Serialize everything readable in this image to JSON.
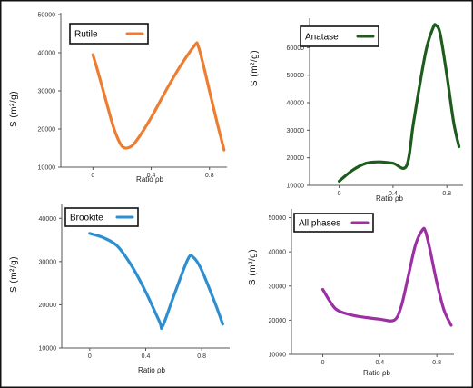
{
  "chart_data": [
    {
      "type": "line",
      "series": [
        {
          "name": "Rutile",
          "color": "#ed7d31",
          "x": [
            0.0,
            0.05,
            0.1,
            0.15,
            0.2,
            0.25,
            0.3,
            0.4,
            0.5,
            0.6,
            0.7,
            0.72,
            0.75,
            0.8,
            0.85,
            0.9
          ],
          "y": [
            39500,
            33000,
            26000,
            19500,
            15500,
            15200,
            17000,
            23000,
            30000,
            36500,
            42000,
            42000,
            38000,
            30000,
            22000,
            14500
          ]
        }
      ],
      "xlabel": "Ratio ρb",
      "ylabel": "S (m²/g)",
      "xticks": [
        0,
        0.4,
        0.8
      ],
      "xtick_labels": [
        "0",
        "0.4",
        "0.8"
      ],
      "yticks": [
        10000,
        20000,
        30000,
        40000,
        50000
      ],
      "ytick_labels": [
        "10000",
        "20000",
        "30000",
        "40000",
        "50000"
      ],
      "xlim": [
        -0.22,
        0.92
      ],
      "ylim": [
        10000,
        50000
      ],
      "legend": "top-left"
    },
    {
      "type": "line",
      "series": [
        {
          "name": "Anatase",
          "color": "#1e5c1e",
          "x": [
            0.0,
            0.1,
            0.2,
            0.3,
            0.4,
            0.5,
            0.55,
            0.6,
            0.65,
            0.7,
            0.72,
            0.75,
            0.8,
            0.85,
            0.89
          ],
          "y": [
            11500,
            15500,
            18000,
            18500,
            18000,
            17000,
            32000,
            47000,
            60000,
            67500,
            68000,
            65000,
            50000,
            33000,
            24000
          ]
        }
      ],
      "xlabel": "Ratio ρb",
      "ylabel": "S (m²/g)",
      "xticks": [
        0,
        0.4,
        0.8
      ],
      "xtick_labels": [
        "0",
        "0.4",
        "0.8"
      ],
      "yticks": [
        10000,
        20000,
        30000,
        40000,
        50000,
        60000
      ],
      "ytick_labels": [
        "10000",
        "20000",
        "30000",
        "40000",
        "50000",
        "60000"
      ],
      "xlim": [
        -0.22,
        0.92
      ],
      "ylim": [
        10000,
        70000
      ],
      "legend": "top-left"
    },
    {
      "type": "line",
      "series": [
        {
          "name": "Brookite",
          "color": "#2e8fd0",
          "x": [
            0.0,
            0.1,
            0.2,
            0.3,
            0.4,
            0.5,
            0.52,
            0.6,
            0.7,
            0.74,
            0.8,
            0.9,
            0.95
          ],
          "y": [
            36500,
            35500,
            33500,
            29000,
            23000,
            16000,
            15000,
            22000,
            30500,
            31000,
            28000,
            20000,
            15500
          ]
        }
      ],
      "xlabel": "Ratio ρb",
      "ylabel": "S (m²/g)",
      "xticks": [
        0,
        0.4,
        0.8
      ],
      "xtick_labels": [
        "0",
        "0.4",
        "0.8"
      ],
      "yticks": [
        10000,
        20000,
        30000,
        40000
      ],
      "ytick_labels": [
        "10000",
        "20000",
        "30000",
        "40000"
      ],
      "xlim": [
        -0.2,
        1.0
      ],
      "ylim": [
        10000,
        43000
      ],
      "legend": "top-left"
    },
    {
      "type": "line",
      "series": [
        {
          "name": "All phases",
          "color": "#9b2fa3",
          "x": [
            0.0,
            0.05,
            0.1,
            0.2,
            0.3,
            0.4,
            0.5,
            0.55,
            0.6,
            0.65,
            0.7,
            0.72,
            0.75,
            0.8,
            0.85,
            0.9
          ],
          "y": [
            29000,
            25500,
            23000,
            21500,
            20800,
            20300,
            20000,
            24000,
            33000,
            42000,
            46500,
            46000,
            41000,
            31000,
            23000,
            18500
          ]
        }
      ],
      "xlabel": "Ratio ρb",
      "ylabel": "S (m²/g)",
      "xticks": [
        0,
        0.4,
        0.8
      ],
      "xtick_labels": [
        "0",
        "0.4",
        "0.8"
      ],
      "yticks": [
        10000,
        20000,
        30000,
        40000,
        50000
      ],
      "ytick_labels": [
        "10000",
        "20000",
        "30000",
        "40000",
        "50000"
      ],
      "xlim": [
        -0.22,
        0.92
      ],
      "ylim": [
        10000,
        52000
      ],
      "legend": "top-left"
    }
  ]
}
